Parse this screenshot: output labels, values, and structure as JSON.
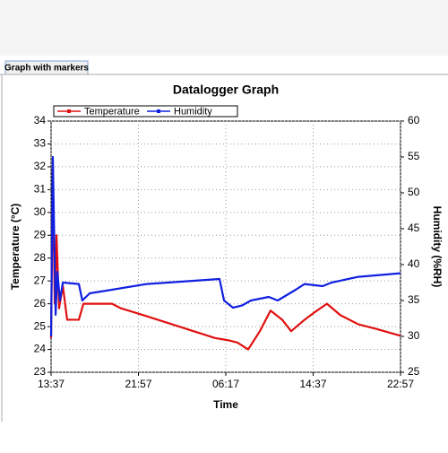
{
  "tab_label": "Graph with markers",
  "chart_data": {
    "type": "line",
    "title": "Datalogger Graph",
    "xlabel": "Time",
    "ylabel": "Temperature (°C)",
    "y2label": "Humidity (%RH)",
    "xlim": [
      0,
      2000
    ],
    "xticks": [
      {
        "value": 0,
        "label": "13:37"
      },
      {
        "value": 500,
        "label": "21:57"
      },
      {
        "value": 1000,
        "label": "06:17"
      },
      {
        "value": 1500,
        "label": "14:37"
      },
      {
        "value": 2000,
        "label": "22:57"
      }
    ],
    "ylim": [
      23,
      34
    ],
    "yticks": [
      23,
      24,
      25,
      26,
      27,
      28,
      29,
      30,
      31,
      32,
      33,
      34
    ],
    "y2lim": [
      25,
      60
    ],
    "y2ticks": [
      25,
      30,
      35,
      40,
      45,
      50,
      55,
      60
    ],
    "grid": true,
    "legend": "top-left",
    "series": [
      {
        "name": "Temperature",
        "color": "#e01010",
        "x": [
          0,
          10,
          21,
          31,
          46,
          67,
          92,
          159,
          185,
          349,
          400,
          528,
          733,
          938,
          1015,
          1067,
          1128,
          1195,
          1256,
          1323,
          1374,
          1451,
          1503,
          1579,
          1656,
          1759,
          1862,
          2000
        ],
        "values": [
          24.5,
          32,
          26,
          29,
          25.8,
          26.8,
          25.3,
          25.3,
          26,
          26,
          25.8,
          25.5,
          25,
          24.5,
          24.4,
          24.3,
          24,
          24.8,
          25.7,
          25.3,
          24.8,
          25.3,
          25.6,
          26,
          25.5,
          25.1,
          24.9,
          24.6
        ]
      },
      {
        "name": "Humidity",
        "color": "#1020e0",
        "axis": "y2",
        "x": [
          0,
          10,
          26,
          36,
          51,
          67,
          159,
          179,
          221,
          549,
          964,
          990,
          1041,
          1092,
          1144,
          1246,
          1297,
          1400,
          1451,
          1554,
          1605,
          1759,
          2000
        ],
        "values": [
          30,
          55,
          33,
          39,
          35,
          37.5,
          37.3,
          35,
          36,
          37.3,
          38,
          35,
          34,
          34.3,
          35,
          35.5,
          35,
          36.5,
          37.3,
          37,
          37.5,
          38.3,
          38.8
        ]
      }
    ]
  }
}
